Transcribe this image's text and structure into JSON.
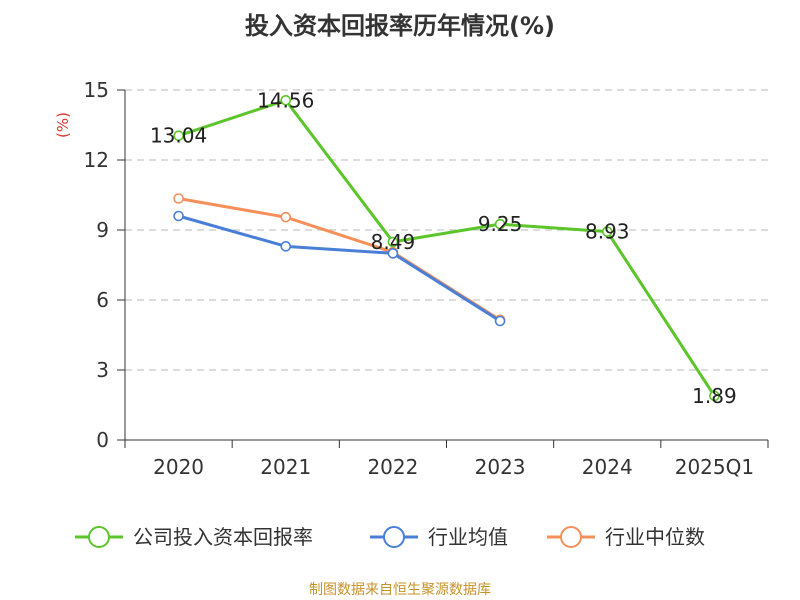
{
  "chart_data": {
    "type": "line",
    "title": "投入资本回报率历年情况(%)",
    "ylabel": "(%)",
    "categories": [
      "2020",
      "2021",
      "2022",
      "2023",
      "2024",
      "2025Q1"
    ],
    "ylim": [
      0,
      15
    ],
    "yticks": [
      0,
      3,
      6,
      9,
      12,
      15
    ],
    "grid": true,
    "legend_position": "bottom",
    "series": [
      {
        "name": "公司投入资本回报率",
        "color": "#5cc52a",
        "values": [
          13.04,
          14.56,
          8.49,
          9.25,
          8.93,
          1.89
        ],
        "labels": [
          "13.04",
          "14.56",
          "8.49",
          "9.25",
          "8.93",
          "1.89"
        ]
      },
      {
        "name": "行业均值",
        "color": "#4a7fd8",
        "values": [
          9.6,
          8.3,
          8.0,
          5.1,
          null,
          null
        ]
      },
      {
        "name": "行业中位数",
        "color": "#f5905a",
        "values": [
          10.35,
          9.55,
          8.05,
          5.15,
          null,
          null
        ]
      }
    ]
  },
  "source": "制图数据来自恒生聚源数据库"
}
